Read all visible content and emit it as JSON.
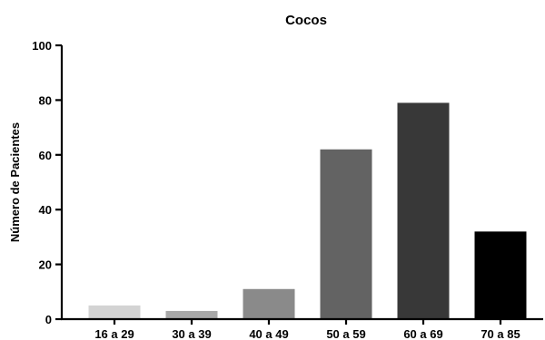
{
  "chart_data": {
    "type": "bar",
    "title": "Cocos",
    "xlabel": "",
    "ylabel": "Número de Pacientes",
    "categories": [
      "16 a 29",
      "30 a 39",
      "40 a 49",
      "50 a 59",
      "60 a 69",
      "70 a 85"
    ],
    "values": [
      5,
      3,
      11,
      62,
      79,
      32
    ],
    "colors": [
      "#d3d3d3",
      "#a8a8a8",
      "#8a8a8a",
      "#636363",
      "#383838",
      "#000000"
    ],
    "ylim": [
      0,
      100
    ],
    "yticks": [
      0,
      20,
      40,
      60,
      80,
      100
    ],
    "grid": false,
    "legend": "none"
  }
}
